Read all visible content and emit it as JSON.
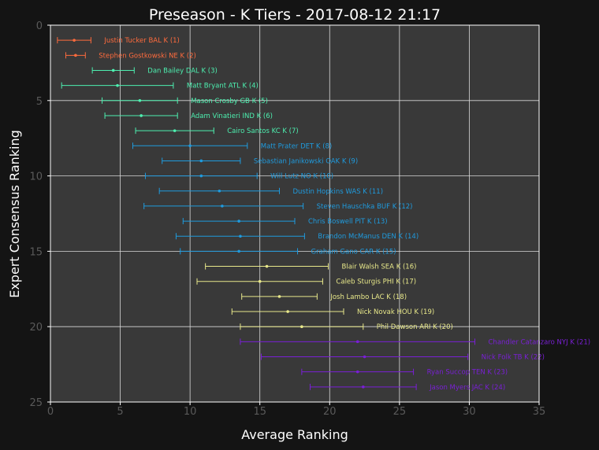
{
  "chart_data": {
    "type": "scatter",
    "title": "Preseason - K Tiers - 2017-08-12 21:17",
    "xlabel": "Average Ranking",
    "ylabel": "Expert Consensus Ranking",
    "xlim": [
      0,
      35
    ],
    "ylim": [
      25,
      0
    ],
    "xticks": [
      "0",
      "5",
      "10",
      "15",
      "20",
      "25",
      "30",
      "35"
    ],
    "yticks": [
      "0",
      "5",
      "10",
      "15",
      "20",
      "25"
    ],
    "grid": true,
    "tier_colors": [
      "#ff6b3d",
      "#4df0b0",
      "#1f9bde",
      "#e8e88a",
      "#7a1fd6"
    ],
    "points": [
      {
        "label": "Justin Tucker BAL  K (1)",
        "rank": 1,
        "avg": 1.7,
        "min": 0.5,
        "max": 2.9,
        "tier": 1
      },
      {
        "label": "Stephen Gostkowski NE  K (2)",
        "rank": 2,
        "avg": 1.8,
        "min": 1.1,
        "max": 2.5,
        "tier": 1
      },
      {
        "label": "Dan Bailey DAL  K (3)",
        "rank": 3,
        "avg": 4.5,
        "min": 3.0,
        "max": 6.0,
        "tier": 2
      },
      {
        "label": "Matt Bryant ATL  K (4)",
        "rank": 4,
        "avg": 4.8,
        "min": 0.8,
        "max": 8.8,
        "tier": 2
      },
      {
        "label": "Mason Crosby GB  K (5)",
        "rank": 5,
        "avg": 6.4,
        "min": 3.7,
        "max": 9.1,
        "tier": 2
      },
      {
        "label": "Adam Vinatieri IND  K (6)",
        "rank": 6,
        "avg": 6.5,
        "min": 3.9,
        "max": 9.1,
        "tier": 2
      },
      {
        "label": "Cairo Santos KC  K (7)",
        "rank": 7,
        "avg": 8.9,
        "min": 6.1,
        "max": 11.7,
        "tier": 2
      },
      {
        "label": "Matt Prater DET  K (8)",
        "rank": 8,
        "avg": 10.0,
        "min": 5.9,
        "max": 14.1,
        "tier": 3
      },
      {
        "label": "Sebastian Janikowski OAK  K (9)",
        "rank": 9,
        "avg": 10.8,
        "min": 8.0,
        "max": 13.6,
        "tier": 3
      },
      {
        "label": "Will Lutz NO  K (10)",
        "rank": 10,
        "avg": 10.8,
        "min": 6.8,
        "max": 14.8,
        "tier": 3
      },
      {
        "label": "Dustin Hopkins WAS  K (11)",
        "rank": 11,
        "avg": 12.1,
        "min": 7.8,
        "max": 16.4,
        "tier": 3
      },
      {
        "label": "Steven Hauschka BUF  K (12)",
        "rank": 12,
        "avg": 12.3,
        "min": 6.7,
        "max": 18.1,
        "tier": 3
      },
      {
        "label": "Chris Boswell PIT  K (13)",
        "rank": 13,
        "avg": 13.5,
        "min": 9.5,
        "max": 17.5,
        "tier": 3
      },
      {
        "label": "Brandon McManus DEN  K (14)",
        "rank": 14,
        "avg": 13.6,
        "min": 9.0,
        "max": 18.2,
        "tier": 3
      },
      {
        "label": "Graham Gano CAR  K (15)",
        "rank": 15,
        "avg": 13.5,
        "min": 9.3,
        "max": 17.7,
        "tier": 3
      },
      {
        "label": "Blair Walsh SEA  K (16)",
        "rank": 16,
        "avg": 15.5,
        "min": 11.1,
        "max": 19.9,
        "tier": 4
      },
      {
        "label": "Caleb Sturgis PHI  K (17)",
        "rank": 17,
        "avg": 15.0,
        "min": 10.5,
        "max": 19.5,
        "tier": 4
      },
      {
        "label": "Josh Lambo LAC  K (18)",
        "rank": 18,
        "avg": 16.4,
        "min": 13.7,
        "max": 19.1,
        "tier": 4
      },
      {
        "label": "Nick Novak HOU  K (19)",
        "rank": 19,
        "avg": 17.0,
        "min": 13.0,
        "max": 21.0,
        "tier": 4
      },
      {
        "label": "Phil Dawson ARI  K (20)",
        "rank": 20,
        "avg": 18.0,
        "min": 13.6,
        "max": 22.4,
        "tier": 4
      },
      {
        "label": "Chandler Catanzaro NYJ  K (21)",
        "rank": 21,
        "avg": 22.0,
        "min": 13.6,
        "max": 30.4,
        "tier": 5
      },
      {
        "label": "Nick Folk TB  K (22)",
        "rank": 22,
        "avg": 22.5,
        "min": 15.1,
        "max": 29.9,
        "tier": 5
      },
      {
        "label": "Ryan Succop TEN  K (23)",
        "rank": 23,
        "avg": 22.0,
        "min": 18.0,
        "max": 26.0,
        "tier": 5
      },
      {
        "label": "Jason Myers JAC  K (24)",
        "rank": 24,
        "avg": 22.4,
        "min": 18.6,
        "max": 26.2,
        "tier": 5
      }
    ]
  }
}
